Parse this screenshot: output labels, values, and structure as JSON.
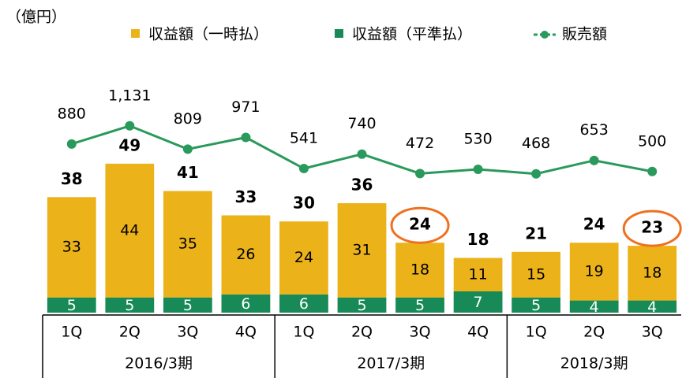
{
  "chart_data": {
    "type": "bar",
    "unit_label": "（億円）",
    "categories": [
      "1Q",
      "2Q",
      "3Q",
      "4Q",
      "1Q",
      "2Q",
      "3Q",
      "4Q",
      "1Q",
      "2Q",
      "3Q"
    ],
    "groups": [
      {
        "label": "2016/3期",
        "span": 4
      },
      {
        "label": "2017/3期",
        "span": 4
      },
      {
        "label": "2018/3期",
        "span": 3
      }
    ],
    "series": [
      {
        "name": "収益額（一時払）",
        "color": "#ebb21a",
        "values": [
          33,
          44,
          35,
          26,
          24,
          31,
          18,
          11,
          15,
          19,
          18
        ]
      },
      {
        "name": "収益額（平準払）",
        "color": "#178a57",
        "values": [
          5,
          5,
          5,
          6,
          6,
          5,
          5,
          7,
          5,
          4,
          4
        ]
      },
      {
        "name": "販売額",
        "color": "#2a9a5c",
        "type": "line",
        "axis": "y2",
        "values": [
          880,
          1131,
          809,
          971,
          541,
          740,
          472,
          530,
          468,
          653,
          500
        ],
        "value_labels": [
          "880",
          "1,131",
          "809",
          "971",
          "541",
          "740",
          "472",
          "530",
          "468",
          "653",
          "500"
        ]
      }
    ],
    "totals": [
      38,
      49,
      41,
      33,
      30,
      36,
      24,
      18,
      21,
      24,
      23
    ],
    "highlighted": [
      6,
      10
    ],
    "highlight_color": "#f07020",
    "ylim": [
      0,
      100
    ],
    "y2lim": [
      -1450,
      2750
    ]
  }
}
